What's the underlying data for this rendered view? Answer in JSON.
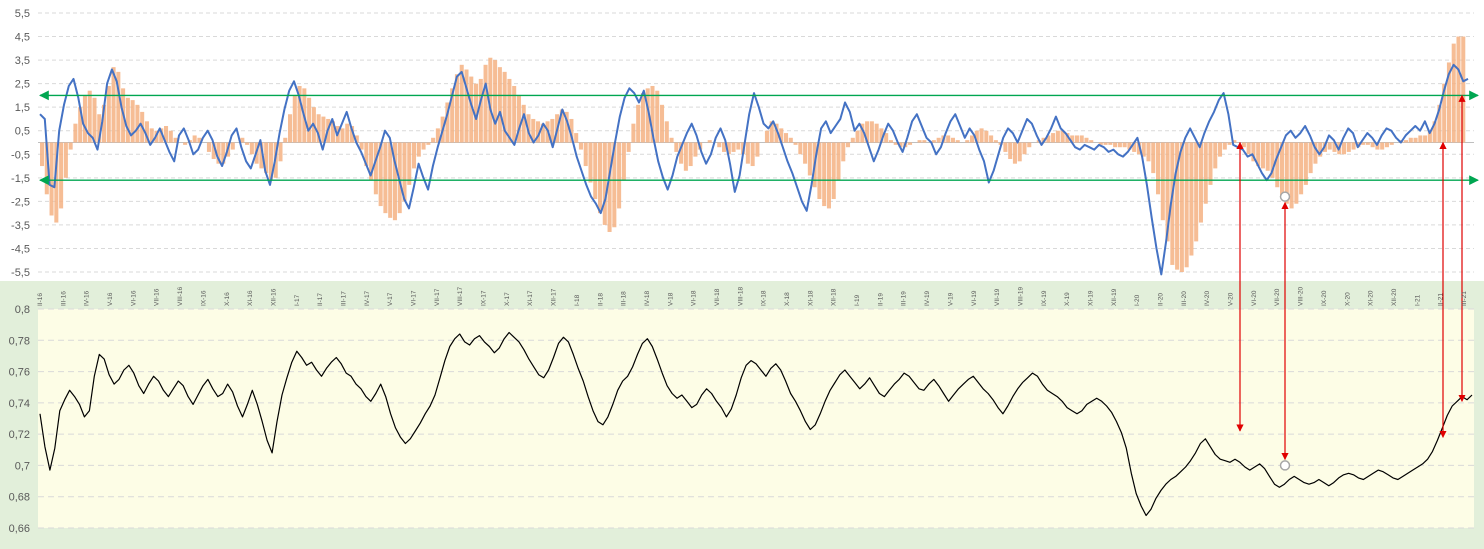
{
  "chart_data": [
    {
      "type": "line",
      "title": "",
      "xlabel": "",
      "ylabel": "",
      "ylim": [
        -5.5,
        5.5
      ],
      "y_ticks": [
        "5,5",
        "4,5",
        "3,5",
        "2,5",
        "1,5",
        "0,5",
        "-0,5",
        "-1,5",
        "-2,5",
        "-3,5",
        "-4,5",
        "-5,5"
      ],
      "x_ticks": [
        "II-16",
        "III-16",
        "IV-16",
        "V-16",
        "VI-16",
        "VII-16",
        "VIII-16",
        "IX-16",
        "X-16",
        "XI-16",
        "XII-16",
        "I-17",
        "II-17",
        "III-17",
        "IV-17",
        "V-17",
        "VI-17",
        "VII-17",
        "VIII-17",
        "IX-17",
        "X-17",
        "XI-17",
        "XII-17",
        "I-18",
        "II-18",
        "III-18",
        "IV-18",
        "V-18",
        "VI-18",
        "VII-18",
        "VIII-18",
        "IX-18",
        "X-18",
        "XI-18",
        "XII-18",
        "I-19",
        "II-19",
        "III-19",
        "IV-19",
        "V-19",
        "VI-19",
        "VII-19",
        "VIII-19",
        "IX-19",
        "X-19",
        "XI-19",
        "XII-19",
        "I-20",
        "II-20",
        "III-20",
        "IV-20",
        "V-20",
        "VI-20",
        "VII-20",
        "VIII-20",
        "IX-20",
        "X-20",
        "XI-20",
        "XII-20",
        "I-21",
        "II-21",
        "III-21"
      ],
      "grid": true,
      "reference_lines": [
        2.0,
        -1.6
      ],
      "series": [
        {
          "kind": "line",
          "color": "#4472c4",
          "values": [
            1.2,
            1.0,
            -1.8,
            -1.9,
            0.5,
            1.6,
            2.4,
            2.7,
            1.9,
            0.8,
            0.4,
            0.2,
            -0.3,
            0.9,
            2.5,
            3.1,
            2.6,
            1.5,
            0.7,
            0.3,
            0.5,
            0.8,
            0.4,
            -0.1,
            0.2,
            0.6,
            0.1,
            -0.4,
            -0.8,
            0.3,
            0.6,
            0.1,
            -0.5,
            -0.3,
            0.2,
            0.5,
            0.1,
            -0.6,
            -1.0,
            -0.4,
            0.3,
            0.6,
            -0.2,
            -0.8,
            -1.1,
            -0.5,
            0.1,
            -1.2,
            -1.8,
            -0.8,
            0.4,
            1.4,
            2.2,
            2.6,
            2.0,
            1.2,
            0.5,
            0.8,
            0.4,
            -0.3,
            0.5,
            1.0,
            0.3,
            0.8,
            1.3,
            0.6,
            0.0,
            -0.4,
            -0.9,
            -1.4,
            -0.8,
            -0.2,
            0.5,
            0.2,
            -0.8,
            -1.6,
            -2.4,
            -2.8,
            -1.9,
            -0.9,
            -1.5,
            -2.0,
            -1.0,
            -0.2,
            0.5,
            1.2,
            2.0,
            2.8,
            3.0,
            2.3,
            1.6,
            1.0,
            1.8,
            2.5,
            1.4,
            0.8,
            1.3,
            0.5,
            0.2,
            -0.1,
            0.6,
            1.2,
            0.4,
            0.0,
            0.3,
            0.8,
            0.5,
            -0.2,
            0.6,
            1.4,
            0.9,
            0.2,
            -0.6,
            -1.2,
            -1.8,
            -2.3,
            -2.6,
            -3.0,
            -2.4,
            -1.2,
            0.0,
            1.1,
            1.9,
            2.3,
            2.1,
            1.7,
            2.2,
            1.3,
            0.2,
            -0.8,
            -1.5,
            -2.0,
            -1.4,
            -0.6,
            -0.1,
            0.4,
            0.8,
            0.3,
            -0.4,
            -0.9,
            -0.5,
            0.2,
            0.6,
            0.1,
            -0.9,
            -2.1,
            -1.4,
            -0.1,
            1.2,
            2.1,
            1.5,
            0.8,
            0.6,
            0.9,
            0.4,
            -0.2,
            -0.8,
            -1.3,
            -1.9,
            -2.5,
            -2.9,
            -1.8,
            -0.5,
            0.6,
            0.9,
            0.4,
            0.7,
            1.0,
            1.7,
            1.3,
            0.5,
            0.8,
            0.4,
            -0.2,
            -0.8,
            -0.3,
            0.3,
            0.8,
            0.5,
            0.0,
            -0.4,
            0.2,
            0.9,
            1.2,
            0.7,
            0.2,
            0.0,
            -0.5,
            -0.2,
            0.4,
            0.9,
            1.2,
            0.7,
            0.2,
            0.6,
            0.3,
            -0.3,
            -0.8,
            -1.7,
            -1.2,
            -0.5,
            0.2,
            0.6,
            0.4,
            0.0,
            0.5,
            1.0,
            0.8,
            0.3,
            -0.1,
            0.2,
            0.6,
            1.1,
            0.6,
            0.4,
            0.1,
            -0.2,
            -0.3,
            -0.1,
            -0.2,
            -0.3,
            -0.1,
            -0.2,
            -0.4,
            -0.3,
            -0.5,
            -0.6,
            -0.4,
            -0.1,
            0.2,
            -0.6,
            -1.8,
            -3.2,
            -4.5,
            -5.6,
            -4.2,
            -2.6,
            -1.3,
            -0.4,
            0.2,
            0.6,
            0.2,
            -0.2,
            0.4,
            0.9,
            1.3,
            1.8,
            2.1,
            1.2,
            -0.1,
            -0.2,
            -0.3,
            -0.6,
            -0.5,
            -0.9,
            -1.3,
            -1.6,
            -1.3,
            -0.7,
            -0.2,
            0.3,
            0.5,
            0.2,
            0.4,
            0.7,
            0.3,
            -0.2,
            -0.5,
            -0.2,
            0.3,
            0.1,
            -0.3,
            0.2,
            0.6,
            0.4,
            -0.2,
            0.1,
            0.4,
            0.2,
            -0.1,
            0.3,
            0.6,
            0.5,
            0.2,
            0.0,
            0.3,
            0.5,
            0.7,
            0.5,
            0.9,
            0.4,
            0.8,
            1.4,
            2.2,
            2.9,
            3.3,
            3.1,
            2.6,
            2.7
          ]
        },
        {
          "kind": "bar",
          "color": "#f4b183",
          "values": [
            -1.0,
            -2.2,
            -3.1,
            -3.4,
            -2.8,
            -1.5,
            -0.3,
            0.8,
            1.5,
            2.0,
            2.2,
            1.9,
            1.2,
            1.6,
            2.4,
            3.2,
            3.0,
            2.3,
            1.9,
            1.8,
            1.6,
            1.3,
            0.9,
            0.6,
            0.5,
            0.6,
            0.7,
            0.5,
            0.2,
            0.0,
            -0.1,
            0.1,
            0.3,
            0.2,
            0.0,
            -0.4,
            -0.7,
            -0.9,
            -0.9,
            -0.6,
            -0.3,
            0.0,
            0.2,
            -0.1,
            -0.5,
            -0.9,
            -1.1,
            -1.3,
            -1.6,
            -1.5,
            -0.8,
            0.2,
            1.2,
            2.0,
            2.4,
            2.3,
            1.9,
            1.5,
            1.2,
            1.1,
            1.0,
            0.9,
            0.7,
            0.6,
            0.8,
            0.7,
            0.3,
            -0.3,
            -1.0,
            -1.6,
            -2.2,
            -2.7,
            -3.0,
            -3.2,
            -3.3,
            -3.0,
            -2.5,
            -1.8,
            -1.1,
            -0.6,
            -0.3,
            -0.1,
            0.2,
            0.6,
            1.1,
            1.7,
            2.3,
            2.9,
            3.3,
            3.1,
            2.8,
            2.5,
            2.7,
            3.3,
            3.6,
            3.5,
            3.2,
            3.0,
            2.7,
            2.4,
            2.0,
            1.6,
            1.2,
            1.0,
            0.9,
            0.8,
            0.9,
            1.0,
            1.2,
            1.4,
            1.3,
            1.0,
            0.4,
            -0.3,
            -1.0,
            -1.7,
            -2.4,
            -3.0,
            -3.5,
            -3.8,
            -3.6,
            -2.8,
            -1.6,
            -0.4,
            0.8,
            1.6,
            2.1,
            2.3,
            2.4,
            2.2,
            1.6,
            0.9,
            0.2,
            -0.4,
            -0.9,
            -1.2,
            -1.0,
            -0.6,
            -0.3,
            0.0,
            0.1,
            0.0,
            -0.2,
            -0.4,
            -0.5,
            -0.4,
            -0.3,
            -0.5,
            -0.9,
            -1.0,
            -0.6,
            0.0,
            0.5,
            0.9,
            0.8,
            0.6,
            0.4,
            0.2,
            -0.1,
            -0.5,
            -0.9,
            -1.4,
            -1.9,
            -2.4,
            -2.7,
            -2.8,
            -2.4,
            -1.6,
            -0.8,
            -0.2,
            0.2,
            0.5,
            0.8,
            0.9,
            0.9,
            0.8,
            0.6,
            0.4,
            0.1,
            -0.1,
            -0.2,
            -0.2,
            -0.1,
            0.0,
            0.1,
            0.1,
            0.0,
            0.1,
            0.2,
            0.3,
            0.3,
            0.2,
            0.1,
            0.0,
            0.1,
            0.3,
            0.5,
            0.6,
            0.5,
            0.3,
            0.1,
            -0.1,
            -0.4,
            -0.7,
            -0.9,
            -0.8,
            -0.5,
            -0.2,
            0.0,
            0.1,
            0.2,
            0.3,
            0.4,
            0.5,
            0.5,
            0.4,
            0.3,
            0.3,
            0.3,
            0.2,
            0.1,
            0.0,
            -0.1,
            -0.1,
            -0.1,
            -0.2,
            -0.2,
            -0.2,
            -0.3,
            -0.4,
            -0.5,
            -0.6,
            -0.8,
            -1.3,
            -2.2,
            -3.3,
            -4.2,
            -5.2,
            -5.4,
            -5.5,
            -5.3,
            -4.8,
            -4.2,
            -3.4,
            -2.6,
            -1.8,
            -1.1,
            -0.6,
            -0.3,
            -0.1,
            0.1,
            0.0,
            -0.2,
            -0.5,
            -0.8,
            -1.0,
            -1.1,
            -1.2,
            -1.5,
            -1.9,
            -2.3,
            -2.6,
            -2.8,
            -2.6,
            -2.2,
            -1.8,
            -1.3,
            -0.9,
            -0.6,
            -0.4,
            -0.3,
            -0.4,
            -0.5,
            -0.5,
            -0.4,
            -0.3,
            -0.2,
            -0.1,
            -0.1,
            -0.2,
            -0.3,
            -0.3,
            -0.2,
            -0.1,
            0.0,
            0.1,
            0.1,
            0.2,
            0.2,
            0.3,
            0.3,
            0.5,
            0.9,
            1.6,
            2.5,
            3.4,
            4.2,
            4.5,
            4.5
          ]
        }
      ],
      "annotations": [
        {
          "type": "circle-marker",
          "y": -2.3
        }
      ]
    },
    {
      "type": "line",
      "title": "",
      "xlabel": "",
      "ylabel": "",
      "ylim": [
        0.66,
        0.8
      ],
      "y_ticks": [
        "0,8",
        "0,78",
        "0,76",
        "0,74",
        "0,72",
        "0,7",
        "0,68",
        "0,66"
      ],
      "grid": true,
      "series": [
        {
          "kind": "line",
          "color": "#000000",
          "values": [
            0.733,
            0.712,
            0.697,
            0.711,
            0.735,
            0.742,
            0.748,
            0.744,
            0.739,
            0.731,
            0.735,
            0.757,
            0.771,
            0.768,
            0.758,
            0.752,
            0.755,
            0.761,
            0.764,
            0.759,
            0.751,
            0.746,
            0.752,
            0.757,
            0.754,
            0.748,
            0.744,
            0.749,
            0.754,
            0.751,
            0.744,
            0.739,
            0.745,
            0.751,
            0.755,
            0.749,
            0.744,
            0.746,
            0.752,
            0.747,
            0.738,
            0.731,
            0.739,
            0.748,
            0.739,
            0.728,
            0.716,
            0.708,
            0.728,
            0.745,
            0.756,
            0.766,
            0.773,
            0.769,
            0.764,
            0.766,
            0.761,
            0.757,
            0.762,
            0.766,
            0.769,
            0.765,
            0.759,
            0.757,
            0.752,
            0.749,
            0.744,
            0.741,
            0.746,
            0.752,
            0.744,
            0.733,
            0.724,
            0.718,
            0.714,
            0.717,
            0.722,
            0.727,
            0.733,
            0.738,
            0.745,
            0.756,
            0.767,
            0.776,
            0.781,
            0.784,
            0.779,
            0.777,
            0.781,
            0.783,
            0.779,
            0.776,
            0.772,
            0.775,
            0.781,
            0.785,
            0.782,
            0.779,
            0.774,
            0.768,
            0.763,
            0.758,
            0.756,
            0.761,
            0.769,
            0.778,
            0.782,
            0.779,
            0.771,
            0.762,
            0.754,
            0.744,
            0.735,
            0.728,
            0.726,
            0.731,
            0.739,
            0.748,
            0.754,
            0.757,
            0.763,
            0.771,
            0.778,
            0.781,
            0.776,
            0.768,
            0.759,
            0.751,
            0.746,
            0.743,
            0.745,
            0.741,
            0.737,
            0.739,
            0.745,
            0.749,
            0.746,
            0.741,
            0.737,
            0.731,
            0.736,
            0.745,
            0.756,
            0.764,
            0.767,
            0.765,
            0.761,
            0.757,
            0.762,
            0.765,
            0.761,
            0.754,
            0.746,
            0.741,
            0.735,
            0.728,
            0.723,
            0.726,
            0.733,
            0.741,
            0.748,
            0.753,
            0.758,
            0.761,
            0.757,
            0.753,
            0.749,
            0.752,
            0.756,
            0.751,
            0.746,
            0.744,
            0.748,
            0.752,
            0.755,
            0.759,
            0.757,
            0.753,
            0.749,
            0.748,
            0.752,
            0.755,
            0.751,
            0.746,
            0.741,
            0.745,
            0.749,
            0.752,
            0.755,
            0.757,
            0.753,
            0.749,
            0.746,
            0.742,
            0.737,
            0.733,
            0.738,
            0.744,
            0.749,
            0.753,
            0.756,
            0.759,
            0.757,
            0.752,
            0.748,
            0.746,
            0.744,
            0.741,
            0.737,
            0.735,
            0.733,
            0.735,
            0.739,
            0.741,
            0.743,
            0.741,
            0.738,
            0.734,
            0.728,
            0.721,
            0.711,
            0.695,
            0.682,
            0.674,
            0.668,
            0.672,
            0.679,
            0.684,
            0.688,
            0.691,
            0.693,
            0.696,
            0.699,
            0.703,
            0.708,
            0.714,
            0.717,
            0.712,
            0.707,
            0.704,
            0.703,
            0.702,
            0.704,
            0.702,
            0.699,
            0.697,
            0.699,
            0.701,
            0.698,
            0.693,
            0.688,
            0.686,
            0.688,
            0.691,
            0.693,
            0.691,
            0.689,
            0.688,
            0.689,
            0.691,
            0.689,
            0.687,
            0.689,
            0.692,
            0.694,
            0.695,
            0.694,
            0.692,
            0.691,
            0.693,
            0.695,
            0.697,
            0.696,
            0.694,
            0.692,
            0.691,
            0.693,
            0.695,
            0.697,
            0.699,
            0.701,
            0.704,
            0.709,
            0.716,
            0.724,
            0.732,
            0.738,
            0.741,
            0.744,
            0.742,
            0.745
          ]
        }
      ],
      "annotations": [
        {
          "type": "circle-marker",
          "y": 0.7
        }
      ]
    }
  ],
  "colors": {
    "upper_bg": "#ffffff",
    "lower_outer_bg": "#e2efda",
    "lower_plot_bg": "#fdfde6",
    "reference_line": "#00a651",
    "arrow": "#e00000",
    "grid": "#d9d9d9"
  }
}
